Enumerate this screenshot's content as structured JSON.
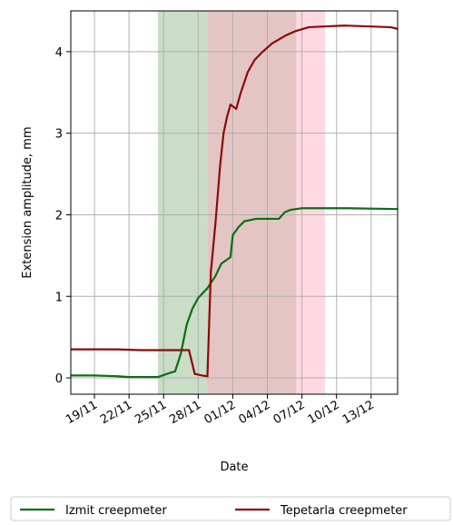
{
  "chart_data": {
    "type": "line",
    "x_label": "Date",
    "y_label": "Extension amplitude, mm",
    "xlim": [
      -2.05,
      26.3
    ],
    "ylim": [
      -0.2,
      4.5
    ],
    "xticks": [
      {
        "value": 0,
        "label": "19/11"
      },
      {
        "value": 3,
        "label": "22/11"
      },
      {
        "value": 6,
        "label": "25/11"
      },
      {
        "value": 9,
        "label": "28/11"
      },
      {
        "value": 12,
        "label": "01/12"
      },
      {
        "value": 15,
        "label": "04/12"
      },
      {
        "value": 18,
        "label": "07/12"
      },
      {
        "value": 21,
        "label": "10/12"
      },
      {
        "value": 24,
        "label": "13/12"
      }
    ],
    "yticks": [
      0,
      1,
      2,
      3,
      4
    ],
    "grid": true,
    "legend": "bottom",
    "spans": [
      {
        "x": [
          5.5,
          9.8
        ],
        "color": "#c9ddc7"
      },
      {
        "x": [
          9.8,
          20.0
        ],
        "color": "#ffd9e1"
      },
      {
        "x": [
          9.8,
          17.5
        ],
        "color": "#e3c6c3"
      }
    ],
    "series": [
      {
        "name": "Izmit creepmeter",
        "color": "#0b6e12",
        "x": [
          -2.05,
          0,
          2,
          3,
          4,
          5.5,
          6.5,
          7,
          7.5,
          8,
          8.5,
          9,
          9.8,
          10.5,
          11,
          11.8,
          12,
          12.5,
          13,
          14,
          16,
          16.5,
          17,
          18,
          22,
          26.3
        ],
        "values": [
          0.03,
          0.03,
          0.02,
          0.01,
          0.01,
          0.01,
          0.06,
          0.08,
          0.3,
          0.65,
          0.85,
          0.98,
          1.1,
          1.25,
          1.4,
          1.48,
          1.75,
          1.85,
          1.92,
          1.95,
          1.95,
          2.03,
          2.06,
          2.08,
          2.08,
          2.07
        ]
      },
      {
        "name": "Tepetarla creepmeter",
        "color": "#8b0a0a",
        "x": [
          -2.05,
          0,
          2,
          4,
          6,
          8.2,
          8.7,
          9.3,
          9.8,
          10.1,
          10.3,
          10.5,
          10.9,
          11.2,
          11.5,
          11.8,
          12.3,
          12.7,
          13.3,
          13.9,
          14.6,
          15.4,
          16.6,
          17.4,
          18.6,
          21.7,
          25.7,
          26.3
        ],
        "values": [
          0.35,
          0.35,
          0.35,
          0.34,
          0.34,
          0.34,
          0.05,
          0.03,
          0.02,
          1.3,
          1.6,
          1.9,
          2.6,
          3.0,
          3.2,
          3.35,
          3.3,
          3.5,
          3.75,
          3.9,
          4.0,
          4.1,
          4.2,
          4.25,
          4.3,
          4.32,
          4.3,
          4.28
        ]
      }
    ]
  }
}
